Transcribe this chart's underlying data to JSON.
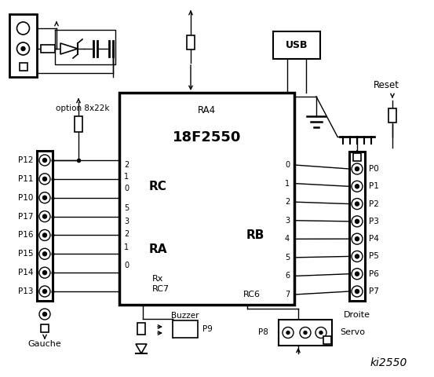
{
  "title": "ki2550",
  "bg_color": "#ffffff",
  "chip_label": "18F2550",
  "chip_sublabel": "RA4",
  "rc_label": "RC",
  "ra_label": "RA",
  "rb_label": "RB",
  "left_connector_label": "Gauche",
  "right_connector_label": "Droite",
  "usb_label": "USB",
  "reset_label": "Reset",
  "buzzer_label": "Buzzer",
  "servo_label": "Servo",
  "option_label": "option 8x22k",
  "left_pins": [
    "P12",
    "P11",
    "P10",
    "P17",
    "P16",
    "P15",
    "P14",
    "P13"
  ],
  "right_pins": [
    "P0",
    "P1",
    "P2",
    "P3",
    "P4",
    "P5",
    "P6",
    "P7"
  ],
  "rc_pins_left": [
    "2",
    "1",
    "0"
  ],
  "ra_pins_left": [
    "5",
    "3",
    "2",
    "1",
    "0"
  ],
  "rb_pins_right": [
    "0",
    "1",
    "2",
    "3",
    "4",
    "5",
    "6",
    "7"
  ],
  "p8_label": "P8",
  "p9_label": "P9",
  "rx_label": "Rx",
  "rc7_label": "RC7",
  "rc6_label": "RC6"
}
